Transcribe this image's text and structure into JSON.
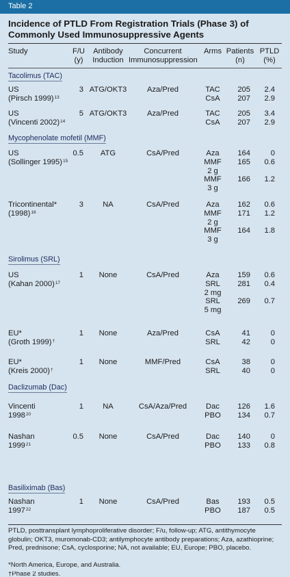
{
  "table_label": "Table 2",
  "title": [
    "Incidence of PTLD From Registration Trials (Phase 3) of",
    "Commonly Used Immunosuppressive Agents"
  ],
  "headers": {
    "study": [
      "Study"
    ],
    "fu": [
      "F/U",
      "(y)"
    ],
    "antibody": [
      "Antibody",
      "Induction"
    ],
    "concurrent": [
      "Concurrent",
      "Immunosuppression"
    ],
    "arms": [
      "Arms"
    ],
    "patients": [
      "Patients",
      "(n)"
    ],
    "ptld": [
      "PTLD",
      "(%)"
    ]
  },
  "sections": [
    {
      "label": "Tacolimus (TAC)",
      "studies": [
        {
          "study": [
            "US",
            "(Pirsch 1999)"
          ],
          "sup": "13",
          "fu": "3",
          "antibody": "ATG/OKT3",
          "concurrent": "Aza/Pred",
          "arms": [
            "TAC",
            "CsA"
          ],
          "patients": [
            "205",
            "207"
          ],
          "ptld": [
            "2.4",
            "2.9"
          ]
        },
        {
          "study": [
            "US",
            "(Vincenti 2002)"
          ],
          "sup": "14",
          "fu": "5",
          "antibody": "ATG/OKT3",
          "concurrent": "Aza/Pred",
          "arms": [
            "TAC",
            "CsA"
          ],
          "patients": [
            "205",
            "207"
          ],
          "ptld": [
            "3.4",
            "2.9"
          ]
        }
      ]
    },
    {
      "label": "Mycophenolate mofetil (MMF)",
      "studies": [
        {
          "study": [
            "US",
            "(Sollinger 1995)"
          ],
          "sup": "15",
          "fu": "0.5",
          "antibody": "ATG",
          "concurrent": "CsA/Pred",
          "arms": [
            "Aza",
            "MMF",
            "2 g",
            "MMF",
            "3 g"
          ],
          "patients": [
            "164",
            "165",
            "",
            "166",
            ""
          ],
          "ptld": [
            "0",
            "0.6",
            "",
            "1.2",
            ""
          ]
        },
        {
          "study": [
            "Tricontinental*",
            "(1998)"
          ],
          "sup": "16",
          "fu": "3",
          "antibody": "NA",
          "concurrent": "CsA/Pred",
          "arms": [
            "Aza",
            "MMF",
            "2 g",
            "MMF",
            "3 g"
          ],
          "patients": [
            "162",
            "171",
            "",
            "164",
            ""
          ],
          "ptld": [
            "0.6",
            "1.2",
            "",
            "1.8",
            ""
          ]
        }
      ]
    },
    {
      "label": "Sirolimus (SRL)",
      "studies": [
        {
          "study": [
            "US",
            "(Kahan 2000)"
          ],
          "sup": "17",
          "fu": "1",
          "antibody": "None",
          "concurrent": "CsA/Pred",
          "arms": [
            "Aza",
            "SRL",
            "2 mg",
            "SRL",
            "5 mg"
          ],
          "patients": [
            "159",
            "281",
            "",
            "269",
            ""
          ],
          "ptld": [
            "0.6",
            "0.4",
            "",
            "0.7",
            ""
          ]
        },
        {
          "study": [
            "EU*",
            "(Groth 1999)"
          ],
          "sup": "†",
          "fu": "1",
          "antibody": "None",
          "concurrent": "Aza/Pred",
          "arms": [
            "CsA",
            "SRL"
          ],
          "patients": [
            "41",
            "42"
          ],
          "ptld": [
            "0",
            "0"
          ]
        },
        {
          "study": [
            "EU*",
            "(Kreis 2000)"
          ],
          "sup": "†",
          "fu": "1",
          "antibody": "None",
          "concurrent": "MMF/Pred",
          "arms": [
            "CsA",
            "SRL"
          ],
          "patients": [
            "38",
            "40"
          ],
          "ptld": [
            "0",
            "0"
          ]
        }
      ]
    },
    {
      "label": "Daclizumab (Dac)",
      "studies": [
        {
          "study": [
            "Vincenti",
            "1998"
          ],
          "sup": "20",
          "fu": "1",
          "antibody": "NA",
          "concurrent": "CsA/Aza/Pred",
          "arms": [
            "Dac",
            "PBO"
          ],
          "patients": [
            "126",
            "134"
          ],
          "ptld": [
            "1.6",
            "0.7"
          ]
        },
        {
          "study": [
            "Nashan",
            "1999"
          ],
          "sup": "21",
          "fu": "0.5",
          "antibody": "None",
          "concurrent": "CsA/Pred",
          "arms": [
            "Dac",
            "PBO"
          ],
          "patients": [
            "140",
            "133"
          ],
          "ptld": [
            "0",
            "0.8"
          ]
        }
      ]
    },
    {
      "label": "Basiliximab (Bas)",
      "studies": [
        {
          "study": [
            "Nashan",
            "1997"
          ],
          "sup": "22",
          "fu": "1",
          "antibody": "None",
          "concurrent": "CsA/Pred",
          "arms": [
            "Bas",
            "PBO"
          ],
          "patients": [
            "193",
            "187"
          ],
          "ptld": [
            "0.5",
            "0.5"
          ]
        }
      ]
    }
  ],
  "footnotes": {
    "abbreviations": "PTLD, posttransplant lymphoproliferative disorder; F/u, follow-up; ATG, antithymocyte globulin; OKT3, muromonab-CD3; antilymphocyte antibody preparations; Aza, azathioprine; Pred, prednisone; CsA, cyclosporine; NA, not available; EU, Europe; PBO, placebo.",
    "asterisk": "*North America, Europe, and Australia.",
    "dagger": "†Phase 2 studies."
  }
}
